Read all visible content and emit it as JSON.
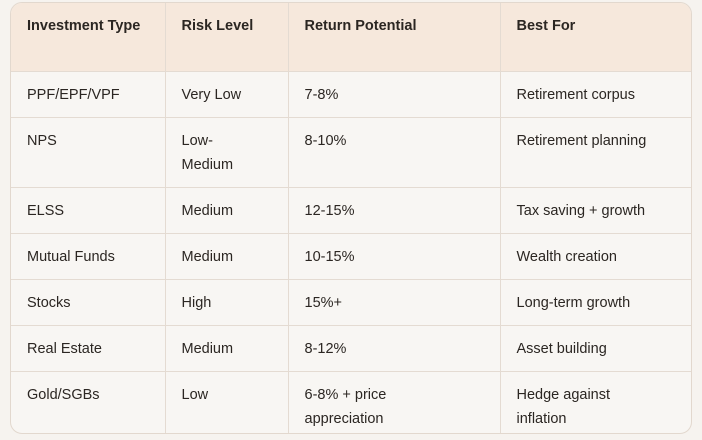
{
  "table": {
    "headers": [
      "Investment Type",
      "Risk Level",
      "Return Potential",
      "Best For"
    ],
    "rows": [
      [
        "PPF/EPF/VPF",
        "Very Low",
        "7-8%",
        "Retirement corpus"
      ],
      [
        "NPS",
        "Low-Medium",
        "8-10%",
        "Retirement planning"
      ],
      [
        "ELSS",
        "Medium",
        "12-15%",
        "Tax saving + growth"
      ],
      [
        "Mutual Funds",
        "Medium",
        "10-15%",
        "Wealth creation"
      ],
      [
        "Stocks",
        "High",
        "15%+",
        "Long-term growth"
      ],
      [
        "Real Estate",
        "Medium",
        "8-12%",
        "Asset building"
      ],
      [
        "Gold/SGBs",
        "Low",
        "6-8% + price appreciation",
        "Hedge against inflation"
      ]
    ]
  },
  "colors": {
    "header_bg": "#f6e8dc",
    "body_bg": "#f8f6f3",
    "border": "#e4dbd2"
  }
}
